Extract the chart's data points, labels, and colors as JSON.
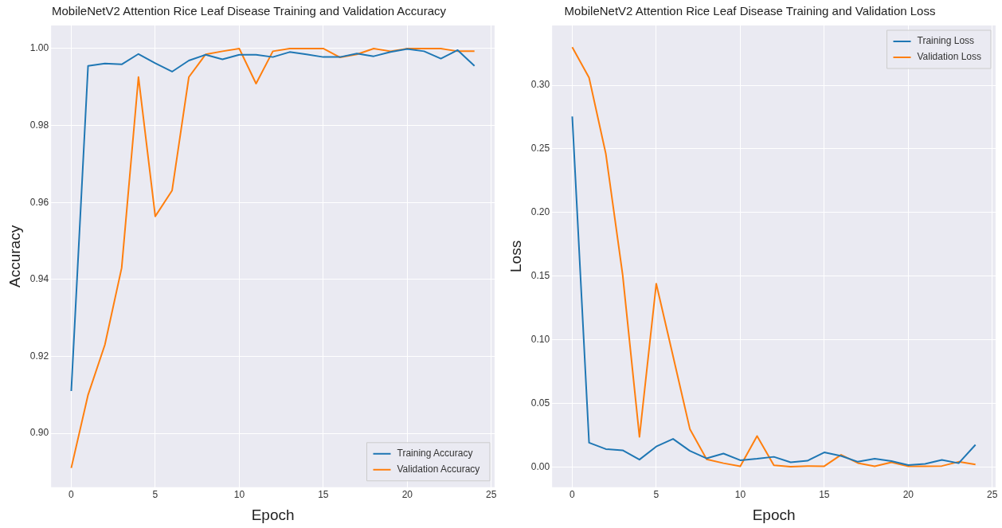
{
  "chart_data": [
    {
      "type": "line",
      "title": "MobileNetV2 Attention Rice Leaf Disease Training and Validation Accuracy",
      "xlabel": "Epoch",
      "ylabel": "Accuracy",
      "x": [
        0,
        1,
        2,
        3,
        4,
        5,
        6,
        7,
        8,
        9,
        10,
        11,
        12,
        13,
        14,
        15,
        16,
        17,
        18,
        19,
        20,
        21,
        22,
        23,
        24
      ],
      "series": [
        {
          "name": "Training Accuracy",
          "color": "#1f77b4",
          "values": [
            0.911,
            0.9955,
            0.9961,
            0.9959,
            0.9986,
            0.9962,
            0.994,
            0.9969,
            0.9984,
            0.9972,
            0.9984,
            0.9984,
            0.9978,
            0.9991,
            0.9985,
            0.9978,
            0.9978,
            0.9987,
            0.998,
            0.9991,
            0.9999,
            0.9993,
            0.9974,
            0.9996,
            0.9955
          ]
        },
        {
          "name": "Validation Accuracy",
          "color": "#ff7f0e",
          "values": [
            0.891,
            0.91,
            0.923,
            0.943,
            0.9926,
            0.9564,
            0.9631,
            0.9926,
            0.9985,
            0.9993,
            1.0,
            0.9909,
            0.9993,
            1.0,
            1.0,
            1.0,
            0.9977,
            0.9985,
            1.0,
            0.9993,
            1.0,
            1.0,
            1.0,
            0.9993,
            0.9993
          ]
        }
      ],
      "xlim": [
        -1.2,
        25.2
      ],
      "xticks": [
        0,
        5,
        10,
        15,
        20,
        25
      ],
      "ylim": [
        0.886,
        1.006
      ],
      "yticks": [
        {
          "value": 0.9,
          "label": "0.90"
        },
        {
          "value": 0.92,
          "label": "0.92"
        },
        {
          "value": 0.94,
          "label": "0.94"
        },
        {
          "value": 0.96,
          "label": "0.96"
        },
        {
          "value": 0.98,
          "label": "0.98"
        },
        {
          "value": 1.0,
          "label": "1.00"
        }
      ],
      "grid": true,
      "legend": "bottom right"
    },
    {
      "type": "line",
      "title": "MobileNetV2 Attention Rice Leaf Disease Training and Validation Loss",
      "xlabel": "Epoch",
      "ylabel": "Loss",
      "x": [
        0,
        1,
        2,
        3,
        4,
        5,
        6,
        7,
        8,
        9,
        10,
        11,
        12,
        13,
        14,
        15,
        16,
        17,
        18,
        19,
        20,
        21,
        22,
        23,
        24
      ],
      "series": [
        {
          "name": "Training Loss",
          "color": "#1f77b4",
          "values": [
            0.2755,
            0.019,
            0.014,
            0.013,
            0.0057,
            0.016,
            0.022,
            0.0126,
            0.0067,
            0.0105,
            0.0052,
            0.0064,
            0.0079,
            0.0036,
            0.0048,
            0.0114,
            0.0086,
            0.004,
            0.0064,
            0.0045,
            0.0014,
            0.0024,
            0.0055,
            0.0029,
            0.0174
          ]
        },
        {
          "name": "Validation Loss",
          "color": "#ff7f0e",
          "values": [
            0.33,
            0.306,
            0.246,
            0.151,
            0.0236,
            0.144,
            0.087,
            0.0298,
            0.006,
            0.0029,
            0.0005,
            0.0243,
            0.0012,
            0.0002,
            0.0007,
            0.0005,
            0.0095,
            0.003,
            0.0005,
            0.0036,
            0.0005,
            0.0005,
            0.0007,
            0.004,
            0.0019
          ]
        }
      ],
      "xlim": [
        -1.2,
        25.2
      ],
      "xticks": [
        0,
        5,
        10,
        15,
        20,
        25
      ],
      "ylim": [
        -0.016,
        0.347
      ],
      "yticks": [
        {
          "value": 0,
          "label": "0.00"
        },
        {
          "value": 0.05,
          "label": "0.05"
        },
        {
          "value": 0.1,
          "label": "0.10"
        },
        {
          "value": 0.15,
          "label": "0.15"
        },
        {
          "value": 0.2,
          "label": "0.20"
        },
        {
          "value": 0.25,
          "label": "0.25"
        },
        {
          "value": 0.3,
          "label": "0.30"
        }
      ],
      "grid": true,
      "legend": "top right"
    }
  ]
}
